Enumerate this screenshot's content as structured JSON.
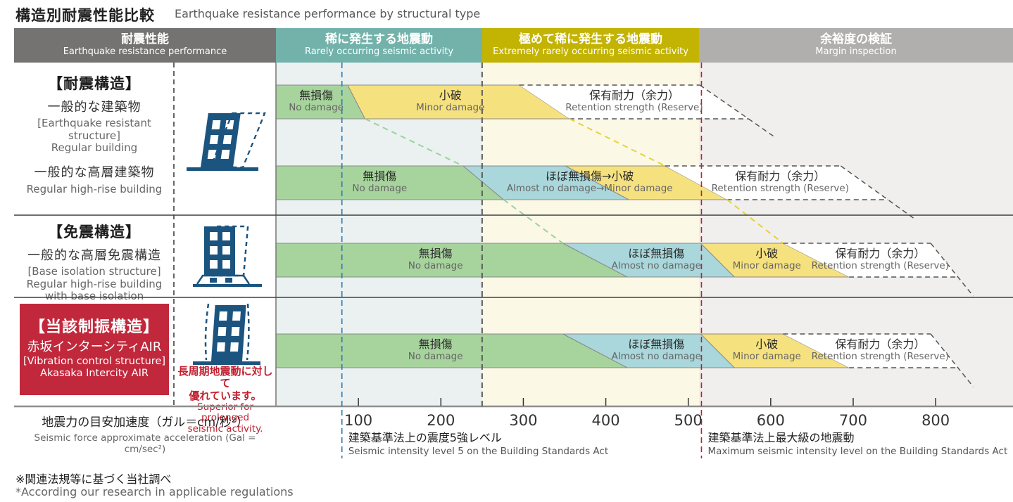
{
  "title": {
    "jp": "構造別耐震性能比較",
    "en": "Earthquake resistance performance by structural type"
  },
  "header": {
    "col_performance": {
      "jp": "耐震性能",
      "en": "Earthquake resistance performance",
      "bg": "#757372"
    },
    "col_rare": {
      "jp": "稀に発生する地震動",
      "en": "Rarely occurring seismic activity",
      "bg": "#72b2aa"
    },
    "col_extremely_rare": {
      "jp": "極めて稀に発生する地震動",
      "en": "Extremely rarely occurring seismic activity",
      "bg": "#c3b303"
    },
    "col_margin": {
      "jp": "余裕度の検証",
      "en": "Margin inspection",
      "bg": "#b1afae"
    }
  },
  "groups": [
    {
      "bracket": "【耐震構造】",
      "name_jp": "一般的な建築物",
      "en_line1": "[Earthquake resistant structure]",
      "en_line2": "Regular building",
      "row2_jp": "一般的な高層建築物",
      "row2_en": "Regular high-rise building"
    },
    {
      "bracket": "【免震構造】",
      "name_jp": "一般的な高層免震構造",
      "en_line1": "[Base isolation structure]",
      "en_line2": "Regular high-rise building",
      "en_line3": "with base isolation"
    },
    {
      "bracket": "【当該制振構造】",
      "name_jp": "赤坂インターシティAIR",
      "en_line1": "[Vibration control structure]",
      "en_line2": "Akasaka Intercity AIR",
      "box_bg": "#c1283c",
      "note_jp1": "長周期地震動に対して",
      "note_jp2": "優れています。",
      "note_en1": "Superior for prolonged",
      "note_en2": "seismic activity.",
      "note_color": "#c0202f"
    }
  ],
  "axis": {
    "title_jp": "地震力の目安加速度（ガル＝cm/秒²）",
    "title_en": "Seismic force approximate acceleration (Gal = cm/sec²)"
  },
  "footnote": {
    "jp": "※関連法規等に基づく当社調べ",
    "en": "*According our research in applicable regulations"
  },
  "chart_data": {
    "type": "stacked-range-bar",
    "x_unit": "Gal (cm/sec2)",
    "x_range": [
      0,
      894
    ],
    "x_ticks": [
      100,
      200,
      300,
      400,
      500,
      600,
      700,
      800
    ],
    "severity_zones": [
      {
        "name": "rare",
        "from_gal": 0,
        "to_gal": 250,
        "tint": "#ebf1f1"
      },
      {
        "name": "extremely-rare",
        "from_gal": 250,
        "to_gal": 513,
        "tint": "#fcf8e6"
      },
      {
        "name": "margin",
        "from_gal": 513,
        "to_gal": 894,
        "tint": "#f0efee"
      }
    ],
    "segment_colors": {
      "no-damage": "#a7d49d",
      "almost-no-damage": "#a9d7db",
      "minor-damage": "#f6e17f",
      "reserve": "#ffffff"
    },
    "reference_lines": [
      {
        "id": "intensity-5",
        "gal": 80,
        "color": "#2f77ab",
        "label_jp": "建築基準法上の震度5強レベル",
        "label_en": "Seismic intensity level 5 on the Building Standards Act"
      },
      {
        "id": "zone-boundary",
        "gal": 250,
        "color": "#5a5a5a"
      },
      {
        "id": "max-level",
        "gal": 516,
        "color": "#c01f30",
        "label_jp": "建築基準法上最大級の地震動",
        "label_en": "Maximum seismic intensity level on the Building Standards Act"
      }
    ],
    "rows": [
      {
        "name": "regular-building",
        "segments": [
          {
            "kind": "no-damage",
            "jp": "無損傷",
            "en": "No damage",
            "end_top_gal": 87,
            "end_bot_gal": 108
          },
          {
            "kind": "minor-damage",
            "jp": "小破",
            "en": "Minor damage",
            "end_top_gal": 295,
            "end_bot_gal": 356
          },
          {
            "kind": "reserve",
            "jp": "保有耐力（余力）",
            "en": "Retention strength (Reserve)",
            "end_top_gal": 514,
            "end_bot_gal": 573
          }
        ]
      },
      {
        "name": "regular-high-rise-building",
        "segments": [
          {
            "kind": "no-damage",
            "jp": "無損傷",
            "en": "No damage",
            "end_top_gal": 227,
            "end_bot_gal": 276
          },
          {
            "kind": "almost-no-damage",
            "jp": "ほぼ無損傷→小破",
            "en": "Almost no damage→Minor damage",
            "end_top_gal": 351,
            "end_bot_gal": 428,
            "label_spans_next": true
          },
          {
            "kind": "minor-damage",
            "end_top_gal": 472,
            "end_bot_gal": 547
          },
          {
            "kind": "reserve",
            "jp": "保有耐力（余力）",
            "en": "Retention strength (Reserve)",
            "end_top_gal": 685,
            "end_bot_gal": 742
          }
        ]
      },
      {
        "name": "base-isolated-high-rise",
        "segments": [
          {
            "kind": "no-damage",
            "jp": "無損傷",
            "en": "No damage",
            "end_top_gal": 348,
            "end_bot_gal": 426
          },
          {
            "kind": "almost-no-damage",
            "jp": "ほぼ無損傷",
            "en": "Almost no damage",
            "end_top_gal": 515,
            "end_bot_gal": 556
          },
          {
            "kind": "minor-damage",
            "jp": "小破",
            "en": "Minor damage",
            "end_top_gal": 615,
            "end_bot_gal": 695
          },
          {
            "kind": "reserve",
            "jp": "保有耐力（余力）",
            "en": "Retention strength (Reserve)",
            "end_top_gal": 794,
            "end_bot_gal": 827
          }
        ]
      },
      {
        "name": "akasaka-intercity-air",
        "segments": [
          {
            "kind": "no-damage",
            "jp": "無損傷",
            "en": "No damage",
            "end_top_gal": 348,
            "end_bot_gal": 426
          },
          {
            "kind": "almost-no-damage",
            "jp": "ほぼ無損傷",
            "en": "Almost no damage",
            "end_top_gal": 515,
            "end_bot_gal": 556
          },
          {
            "kind": "minor-damage",
            "jp": "小破",
            "en": "Minor damage",
            "end_top_gal": 615,
            "end_bot_gal": 695
          },
          {
            "kind": "reserve",
            "jp": "保有耐力（余力）",
            "en": "Retention strength (Reserve)",
            "end_top_gal": 794,
            "end_bot_gal": 827
          }
        ]
      }
    ],
    "connectors": [
      {
        "from_row": 0,
        "to_row": 1,
        "kind": "no-damage",
        "color": "#9bd39a"
      },
      {
        "from_row": 0,
        "to_row": 1,
        "kind": "minor-damage",
        "color": "#e5d23e"
      },
      {
        "from_row": 1,
        "to_row": 2,
        "kind": "no-damage",
        "color": "#9bd39a"
      },
      {
        "from_row": 1,
        "to_row": 2,
        "kind": "minor-damage",
        "color": "#e5d23e"
      }
    ]
  }
}
